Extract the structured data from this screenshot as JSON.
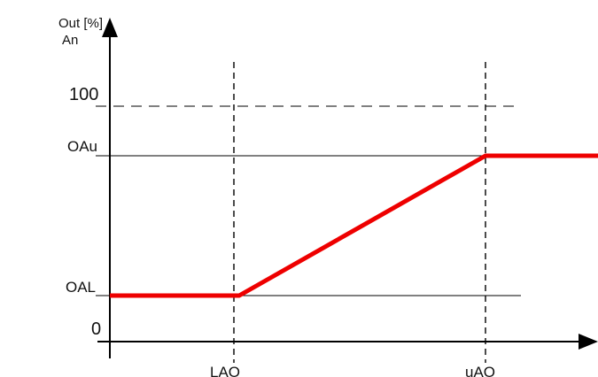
{
  "axes": {
    "y_label_line1": "Out [%]",
    "y_label_line2": "An",
    "y_tick_100": "100",
    "y_tick_upper": "OAu",
    "y_tick_lower": "OAL",
    "y_tick_zero": "0",
    "x_tick_lower": "LAO",
    "x_tick_upper": "uAO"
  },
  "colors": {
    "output_curve": "#ee0000",
    "axis": "#000000",
    "guides": "#000000"
  }
}
